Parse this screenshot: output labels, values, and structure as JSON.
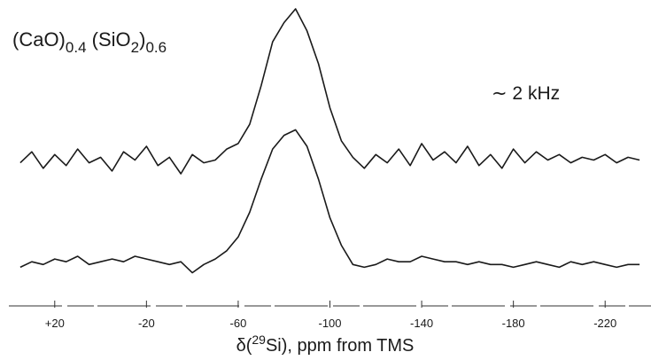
{
  "chart_data": {
    "type": "line",
    "title_parts": [
      "(CaO)",
      "0.4",
      " (SiO",
      "2",
      ")",
      "0.6"
    ],
    "annotation": "∼ 2 kHz",
    "xlabel_parts": [
      "δ(",
      "29",
      "Si), ppm from TMS"
    ],
    "x": [
      35,
      30,
      25,
      20,
      15,
      10,
      5,
      0,
      -5,
      -10,
      -15,
      -20,
      -25,
      -30,
      -35,
      -40,
      -45,
      -50,
      -55,
      -60,
      -65,
      -70,
      -75,
      -80,
      -85,
      -90,
      -95,
      -100,
      -105,
      -110,
      -115,
      -120,
      -125,
      -130,
      -135,
      -140,
      -145,
      -150,
      -155,
      -160,
      -165,
      -170,
      -175,
      -180,
      -185,
      -190,
      -195,
      -200,
      -205,
      -210,
      -215,
      -220,
      -225,
      -230,
      -235
    ],
    "series": [
      {
        "color": "#1a1a1a",
        "values": [
          44,
          48,
          42,
          47,
          43,
          49,
          44,
          46,
          41,
          48,
          45,
          50,
          43,
          46,
          40,
          47,
          44,
          45,
          49,
          51,
          58,
          72,
          88,
          95,
          100,
          92,
          80,
          64,
          52,
          46,
          42,
          47,
          44,
          49,
          43,
          51,
          45,
          48,
          44,
          50,
          43,
          47,
          42,
          49,
          44,
          48,
          45,
          47,
          44,
          46,
          45,
          47,
          44,
          46,
          45
        ]
      },
      {
        "color": "#1a1a1a",
        "values": [
          6,
          8,
          7,
          9,
          8,
          10,
          7,
          8,
          9,
          8,
          10,
          9,
          8,
          7,
          8,
          4,
          7,
          9,
          12,
          17,
          26,
          38,
          49,
          54,
          56,
          50,
          38,
          24,
          14,
          7,
          6,
          7,
          9,
          8,
          8,
          10,
          9,
          8,
          8,
          7,
          8,
          7,
          7,
          6,
          7,
          8,
          7,
          6,
          8,
          7,
          8,
          7,
          6,
          7,
          7
        ]
      }
    ],
    "xlim": [
      40,
      -240
    ],
    "ylim": [
      0,
      100
    ],
    "xticks": [
      {
        "value": 20,
        "label": "+20"
      },
      -20,
      -60,
      -100,
      -140,
      -180,
      -220
    ]
  }
}
